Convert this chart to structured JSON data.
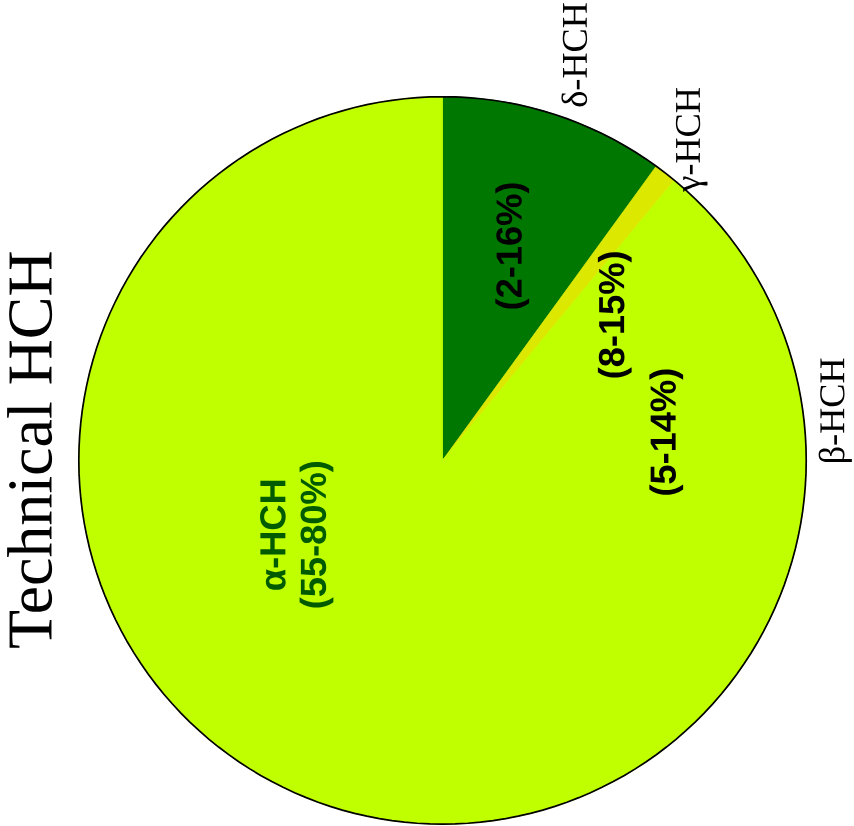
{
  "chart_data": {
    "type": "pie",
    "title": "Technical HCH",
    "categories": [
      "δ-HCH",
      "γ-HCH",
      "β-HCH",
      "α-HCH"
    ],
    "values": [
      10,
      1,
      24,
      65
    ],
    "colors": [
      "#007700",
      "#dde800",
      "#bfff00",
      "#bfff00"
    ],
    "annotations": [
      {
        "text": "(2-16%)",
        "x": "δ-HCH"
      },
      {
        "text": "(8-15%)",
        "x": "γ-HCH"
      },
      {
        "text": "(5-14%)",
        "x": "β-HCH"
      },
      {
        "text": "(55-80%)",
        "x": "α-HCH"
      }
    ]
  }
}
